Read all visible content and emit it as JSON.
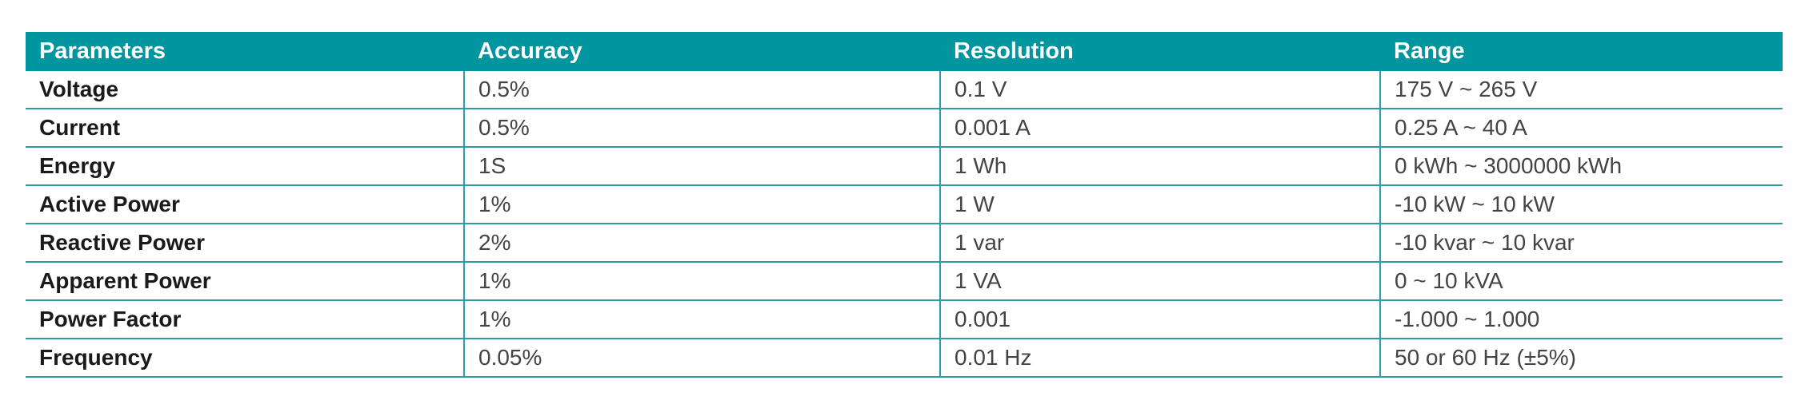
{
  "table": {
    "columns": [
      "Parameters",
      "Accuracy",
      "Resolution",
      "Range"
    ],
    "rows": [
      [
        "Voltage",
        "0.5%",
        "0.1 V",
        "175 V ~ 265 V"
      ],
      [
        "Current",
        "0.5%",
        "0.001 A",
        "0.25 A ~ 40 A"
      ],
      [
        "Energy",
        "1S",
        "1 Wh",
        "0 kWh ~ 3000000 kWh"
      ],
      [
        "Active Power",
        "1%",
        "1 W",
        "-10 kW ~ 10 kW"
      ],
      [
        "Reactive Power",
        "2%",
        "1 var",
        "-10 kvar ~ 10 kvar"
      ],
      [
        "Apparent Power",
        "1%",
        "1 VA",
        "0 ~ 10 kVA"
      ],
      [
        "Power Factor",
        "1%",
        "0.001",
        "-1.000 ~ 1.000"
      ],
      [
        "Frequency",
        "0.05%",
        "0.01 Hz",
        "50 or 60 Hz (±5%)"
      ]
    ]
  }
}
